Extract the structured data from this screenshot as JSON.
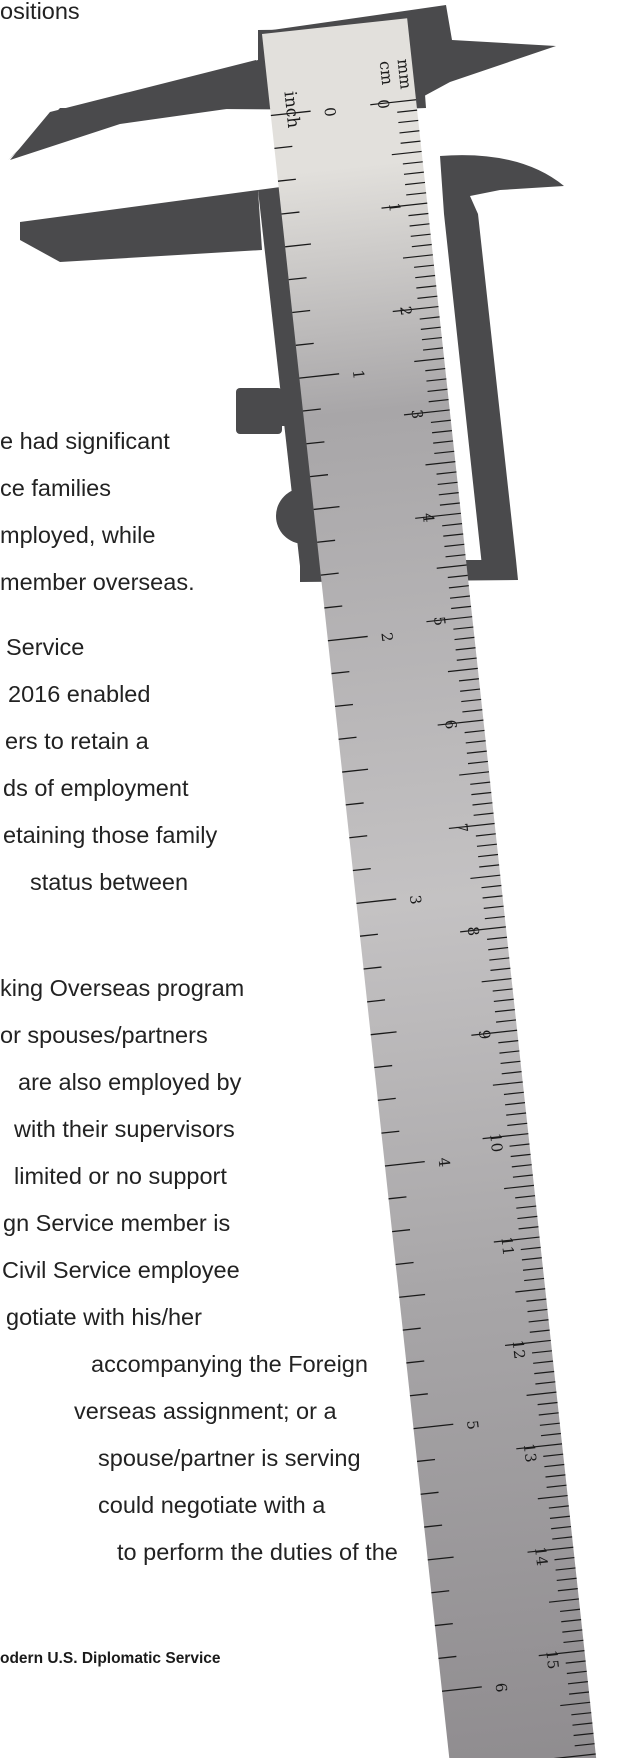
{
  "article": {
    "top_fragment": "ositions",
    "paragraphs": [
      {
        "lines": [
          "e had significant",
          "ce families",
          "mployed, while",
          "member overseas."
        ]
      },
      {
        "lines": [
          "Service",
          "2016 enabled",
          "ers to retain a",
          "ds of employment",
          "etaining those family",
          "status between"
        ]
      },
      {
        "lines": [
          "king Overseas program",
          "or spouses/partners",
          "are also employed by",
          "with their supervisors",
          "limited or no support",
          "gn Service member is",
          "Civil Service employee",
          "gotiate with his/her",
          "accompanying the Foreign",
          "verseas assignment; or a",
          "spouse/partner is serving",
          "could negotiate with a",
          "to perform the duties of the"
        ]
      }
    ],
    "footer": "odern U.S. Diplomatic Service"
  },
  "illustration": {
    "icon": "vernier-caliper-icon",
    "units_inch": "inch",
    "units_mm": "mm",
    "units_cm": "cm",
    "inch_numbers": [
      "0",
      "1",
      "2",
      "3",
      "4",
      "5",
      "6"
    ],
    "cm_numbers": [
      "0",
      "1",
      "2",
      "3",
      "4",
      "5",
      "6",
      "7",
      "8",
      "9",
      "10",
      "11",
      "12",
      "13",
      "14",
      "15"
    ],
    "colors": {
      "jaw": "#4a4a4c",
      "ruler_light": "#e2e0dc",
      "ruler_mid": "#a8a6a8",
      "ruler_dark": "#8f8c8f",
      "ink": "#1a1a1a"
    }
  }
}
